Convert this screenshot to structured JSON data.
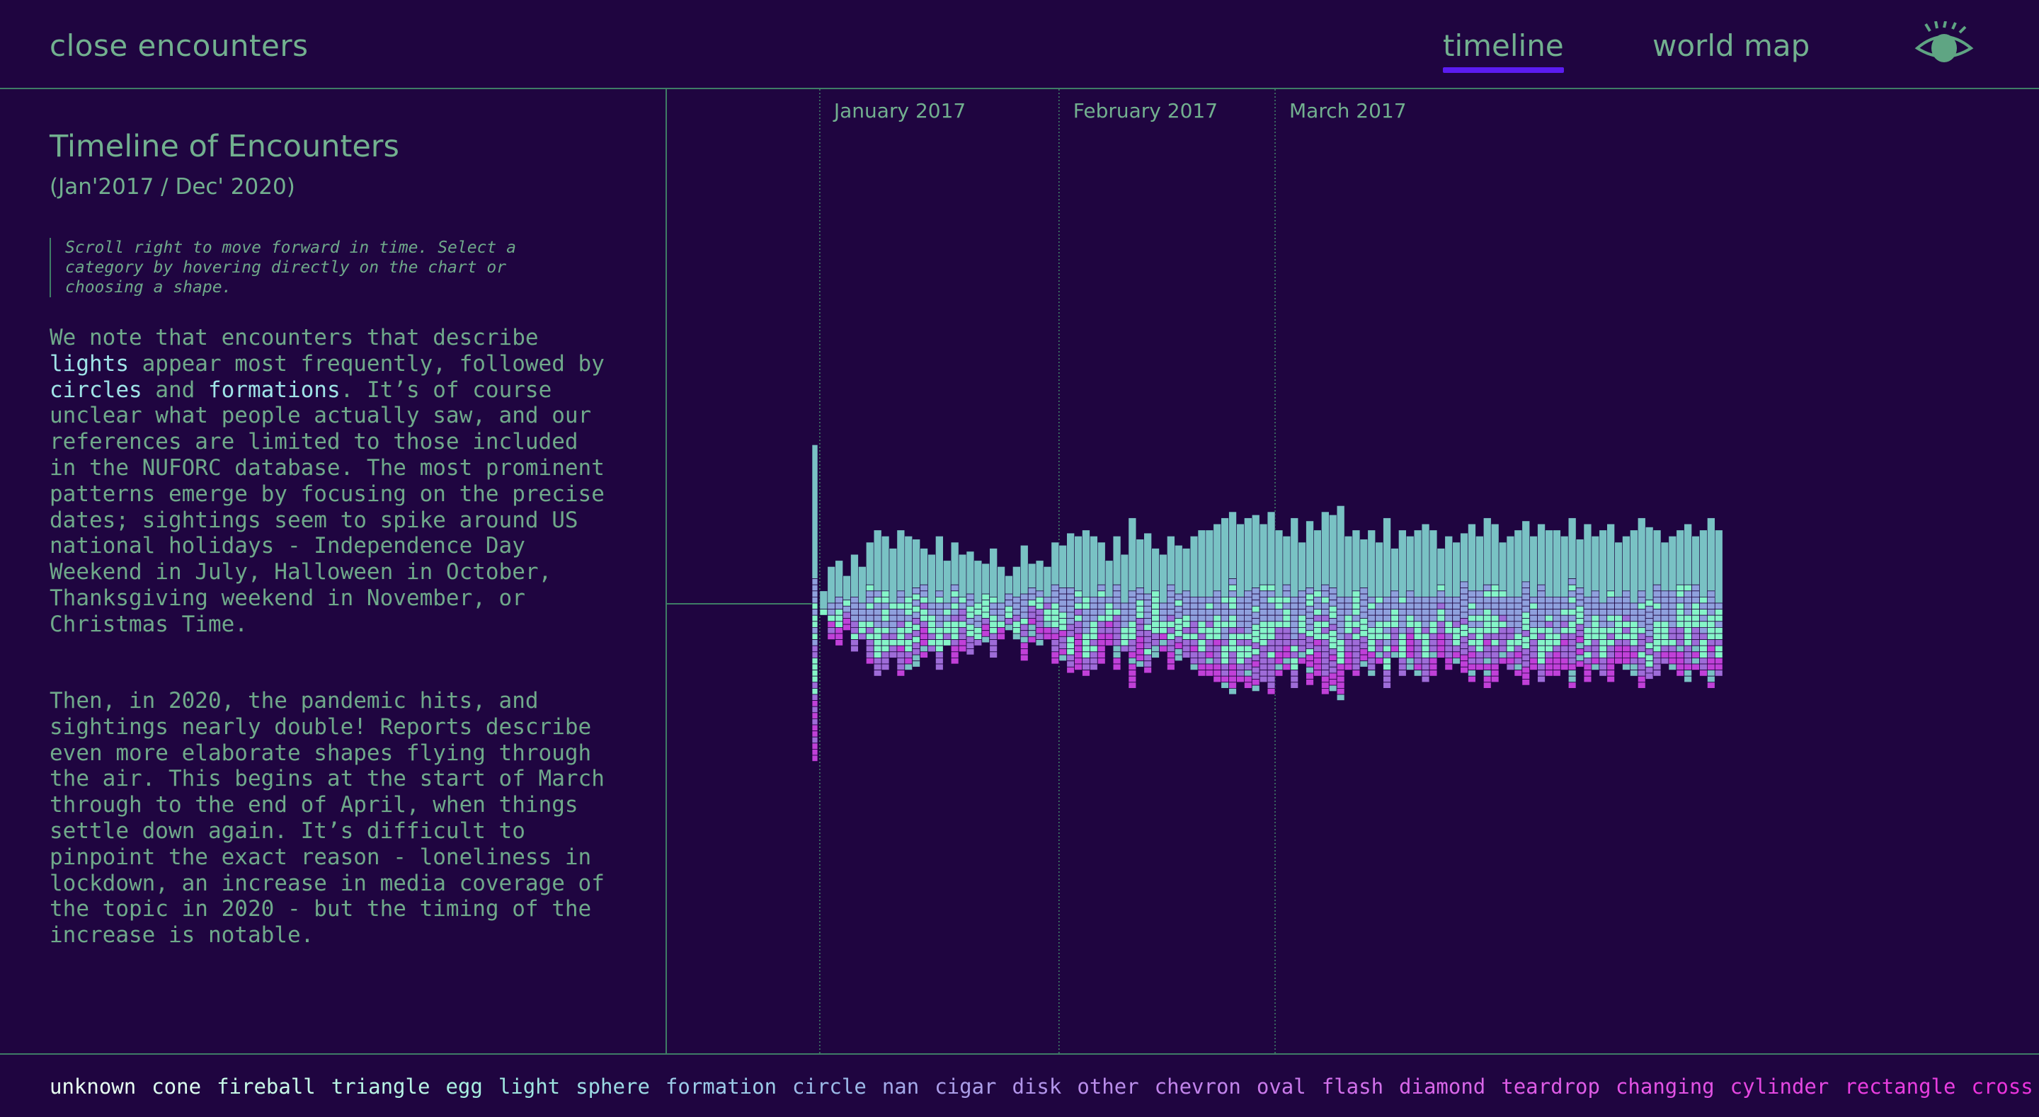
{
  "header": {
    "brand": "close encounters",
    "nav": {
      "timeline": "timeline",
      "world_map": "world map"
    },
    "active_nav": "timeline",
    "accent_color": "#5b1cf0",
    "eye_icon": "eye-icon"
  },
  "sidebar": {
    "title": "Timeline of Encounters",
    "subtitle": "(Jan'2017 / Dec' 2020)",
    "hint": "Scroll right to move forward in time. Select a category by hovering directly on the chart or choosing a shape.",
    "para1": {
      "t1": "We note that encounters that describe ",
      "lights": "lights",
      "t2": " appear most frequently, followed by ",
      "circles": "circles",
      "t3": " and ",
      "formations": "formations",
      "t4": ". It’s of course unclear what people actually saw, and our references are limited to those included in the NUFORC database. The most prominent patterns emerge by focusing on the precise dates; sightings seem to spike around US national holidays - Independence Day Weekend in July, Halloween in October, Thanksgiving weekend in November, or Christmas Time."
    },
    "para2": "Then, in 2020, the pandemic hits, and sightings nearly double! Reports describe even more elaborate shapes flying through the air. This begins at the start of March through to the end of April, when things settle down again. It’s difficult to pinpoint the exact reason - loneliness in lockdown, an increase in media coverage of the topic in 2020 - but the timing of the increase is notable."
  },
  "legend": {
    "items": [
      {
        "label": "unknown",
        "color": "#e8fff2"
      },
      {
        "label": "cone",
        "color": "#dcfff0"
      },
      {
        "label": "fireball",
        "color": "#c8fbe8"
      },
      {
        "label": "triangle",
        "color": "#b8f5e4"
      },
      {
        "label": "egg",
        "color": "#a8efe0"
      },
      {
        "label": "light",
        "color": "#9ee6e0"
      },
      {
        "label": "sphere",
        "color": "#9cdbe4"
      },
      {
        "label": "formation",
        "color": "#9ccbe8"
      },
      {
        "label": "circle",
        "color": "#9cbae8"
      },
      {
        "label": "nan",
        "color": "#a3a9e8"
      },
      {
        "label": "cigar",
        "color": "#ab9ee8"
      },
      {
        "label": "disk",
        "color": "#b295ea"
      },
      {
        "label": "other",
        "color": "#b98dea"
      },
      {
        "label": "chevron",
        "color": "#c184ea"
      },
      {
        "label": "oval",
        "color": "#c97aea"
      },
      {
        "label": "flash",
        "color": "#d170ea"
      },
      {
        "label": "diamond",
        "color": "#d866e8"
      },
      {
        "label": "teardrop",
        "color": "#de5ce6"
      },
      {
        "label": "changing",
        "color": "#e252e4"
      },
      {
        "label": "cylinder",
        "color": "#e548e2"
      },
      {
        "label": "rectangle",
        "color": "#e83ee0"
      },
      {
        "label": "cross",
        "color": "#eb34dc"
      }
    ]
  },
  "chart_data": {
    "type": "area",
    "layout": "streamgraph",
    "x_ticks": [
      "January 2017",
      "February 2017",
      "March 2017"
    ],
    "x_label_dates": [
      "2017-01-01",
      "2017-02-01",
      "2017-03-01"
    ],
    "stack_colors": [
      "#79c2c4",
      "#8fa0dd",
      "#85f5c8",
      "#9e6cd8",
      "#c040d8"
    ],
    "start_date": "2016-12-31",
    "daily_totals": [
      52,
      4,
      12,
      14,
      9,
      16,
      12,
      20,
      24,
      22,
      18,
      24,
      22,
      21,
      18,
      16,
      22,
      14,
      20,
      16,
      17,
      14,
      13,
      18,
      12,
      9,
      12,
      19,
      13,
      14,
      12,
      20,
      19,
      23,
      22,
      24,
      22,
      20,
      14,
      22,
      16,
      28,
      21,
      23,
      18,
      16,
      22,
      19,
      18,
      22,
      24,
      24,
      26,
      28,
      30,
      26,
      28,
      29,
      26,
      30,
      24,
      22,
      28,
      20,
      27,
      24,
      30,
      29,
      32,
      22,
      24,
      21,
      24,
      20,
      28,
      18,
      24,
      22,
      24,
      26,
      24,
      18,
      22,
      20,
      23,
      26,
      22,
      28,
      26,
      20,
      22,
      24,
      27,
      22,
      26,
      24,
      24,
      22,
      28,
      21,
      26,
      22,
      24,
      26,
      20,
      22,
      24,
      28,
      25,
      24,
      20,
      22,
      24,
      26,
      22,
      24,
      28,
      24
    ]
  }
}
